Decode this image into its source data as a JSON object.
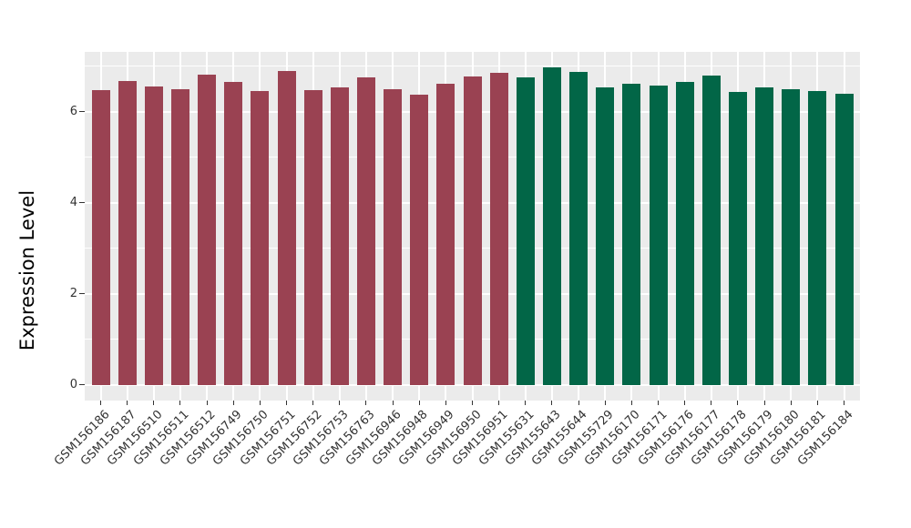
{
  "chart_data": {
    "type": "bar",
    "title": "",
    "xlabel": "",
    "ylabel": "Expression Level",
    "yticks": [
      0,
      2,
      4,
      6
    ],
    "minor_gridlines": [
      1,
      3,
      5,
      7
    ],
    "ylim": [
      -0.35,
      7.31
    ],
    "grid": "on",
    "legend_position": "none",
    "panel_bg": "#EBEBEB",
    "gridline_color": "#FFFFFF",
    "tick_color": "#333333",
    "groups": {
      "red": "#9A4252",
      "green": "#026647"
    },
    "bars": [
      {
        "label": "GSM156186",
        "value": 6.47,
        "group": "red"
      },
      {
        "label": "GSM156187",
        "value": 6.67,
        "group": "red"
      },
      {
        "label": "GSM156510",
        "value": 6.56,
        "group": "red"
      },
      {
        "label": "GSM156511",
        "value": 6.49,
        "group": "red"
      },
      {
        "label": "GSM156512",
        "value": 6.81,
        "group": "red"
      },
      {
        "label": "GSM156749",
        "value": 6.66,
        "group": "red"
      },
      {
        "label": "GSM156750",
        "value": 6.46,
        "group": "red"
      },
      {
        "label": "GSM156751",
        "value": 6.89,
        "group": "red"
      },
      {
        "label": "GSM156752",
        "value": 6.47,
        "group": "red"
      },
      {
        "label": "GSM156753",
        "value": 6.54,
        "group": "red"
      },
      {
        "label": "GSM156763",
        "value": 6.75,
        "group": "red"
      },
      {
        "label": "GSM156946",
        "value": 6.49,
        "group": "red"
      },
      {
        "label": "GSM156948",
        "value": 6.37,
        "group": "red"
      },
      {
        "label": "GSM156949",
        "value": 6.61,
        "group": "red"
      },
      {
        "label": "GSM156950",
        "value": 6.77,
        "group": "red"
      },
      {
        "label": "GSM156951",
        "value": 6.85,
        "group": "red"
      },
      {
        "label": "GSM155631",
        "value": 6.76,
        "group": "green"
      },
      {
        "label": "GSM155643",
        "value": 6.97,
        "group": "green"
      },
      {
        "label": "GSM155644",
        "value": 6.87,
        "group": "green"
      },
      {
        "label": "GSM155729",
        "value": 6.53,
        "group": "green"
      },
      {
        "label": "GSM156170",
        "value": 6.61,
        "group": "green"
      },
      {
        "label": "GSM156171",
        "value": 6.58,
        "group": "green"
      },
      {
        "label": "GSM156176",
        "value": 6.66,
        "group": "green"
      },
      {
        "label": "GSM156177",
        "value": 6.79,
        "group": "green"
      },
      {
        "label": "GSM156178",
        "value": 6.43,
        "group": "green"
      },
      {
        "label": "GSM156179",
        "value": 6.53,
        "group": "green"
      },
      {
        "label": "GSM156180",
        "value": 6.5,
        "group": "green"
      },
      {
        "label": "GSM156181",
        "value": 6.45,
        "group": "green"
      },
      {
        "label": "GSM156184",
        "value": 6.39,
        "group": "green"
      }
    ]
  }
}
